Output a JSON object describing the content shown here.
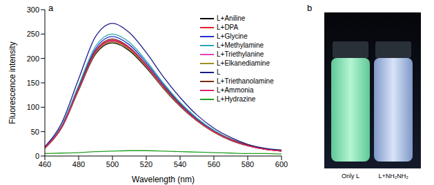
{
  "chart_data": {
    "type": "line",
    "panel_label": "a",
    "x_label": "Wavelength (nm)",
    "y_label": "Fluorescence intensity",
    "x": [
      460,
      470,
      480,
      490,
      500,
      510,
      520,
      530,
      540,
      550,
      560,
      570,
      580,
      590,
      600
    ],
    "xlim": [
      460,
      600
    ],
    "xticks": [
      460,
      480,
      500,
      520,
      540,
      560,
      580,
      600
    ],
    "ylim": [
      0,
      300
    ],
    "yticks": [
      0,
      50,
      100,
      150,
      200,
      250,
      300
    ],
    "grid": false,
    "legend": "upper right",
    "series": [
      {
        "name": "L+Aniline",
        "color": "#000000",
        "values": [
          16,
          58,
          135,
          209,
          232,
          216,
          181,
          139,
          102,
          72,
          49,
          32,
          21,
          14,
          10
        ]
      },
      {
        "name": "L+DPA",
        "color": "#e0202a",
        "values": [
          16,
          59,
          137,
          212,
          236,
          220,
          184,
          142,
          104,
          73,
          49,
          33,
          21,
          14,
          10
        ]
      },
      {
        "name": "L+Glycine",
        "color": "#1f2fd0",
        "values": [
          17,
          61,
          142,
          220,
          245,
          228,
          191,
          147,
          108,
          76,
          52,
          34,
          22,
          15,
          11
        ]
      },
      {
        "name": "L+Methylamine",
        "color": "#2aa5b0",
        "values": [
          18,
          63,
          145,
          225,
          250,
          233,
          195,
          150,
          110,
          78,
          53,
          35,
          23,
          15,
          11
        ]
      },
      {
        "name": "L+Triethylanine",
        "color": "#e040c0",
        "values": [
          17,
          60,
          138,
          214,
          238,
          222,
          186,
          143,
          105,
          74,
          50,
          33,
          22,
          14,
          11
        ]
      },
      {
        "name": "L+Elkanediamine",
        "color": "#a09020",
        "values": [
          16,
          58,
          136,
          211,
          234,
          218,
          183,
          140,
          103,
          72,
          49,
          33,
          21,
          14,
          10
        ]
      },
      {
        "name": "L",
        "color": "#1a1a8a",
        "values": [
          19,
          68,
          158,
          245,
          272,
          253,
          212,
          163,
          120,
          84,
          57,
          38,
          24,
          16,
          12
        ]
      },
      {
        "name": "L+Triethanolamine",
        "color": "#7a2a10",
        "values": [
          17,
          60,
          139,
          216,
          240,
          223,
          187,
          144,
          106,
          74,
          50,
          34,
          22,
          14,
          11
        ]
      },
      {
        "name": "L+Ammonia",
        "color": "#e02070",
        "values": [
          17,
          59,
          137,
          213,
          237,
          221,
          185,
          142,
          104,
          73,
          50,
          33,
          21,
          14,
          10
        ]
      },
      {
        "name": "L+Hydrazine",
        "color": "#20a020",
        "values": [
          5,
          6,
          7,
          9,
          10,
          11,
          11,
          10,
          9,
          8,
          7,
          6,
          5,
          5,
          4
        ]
      }
    ]
  },
  "photo": {
    "panel_label": "b",
    "captions": [
      "Only L",
      "L+NH₂NH₂"
    ]
  }
}
